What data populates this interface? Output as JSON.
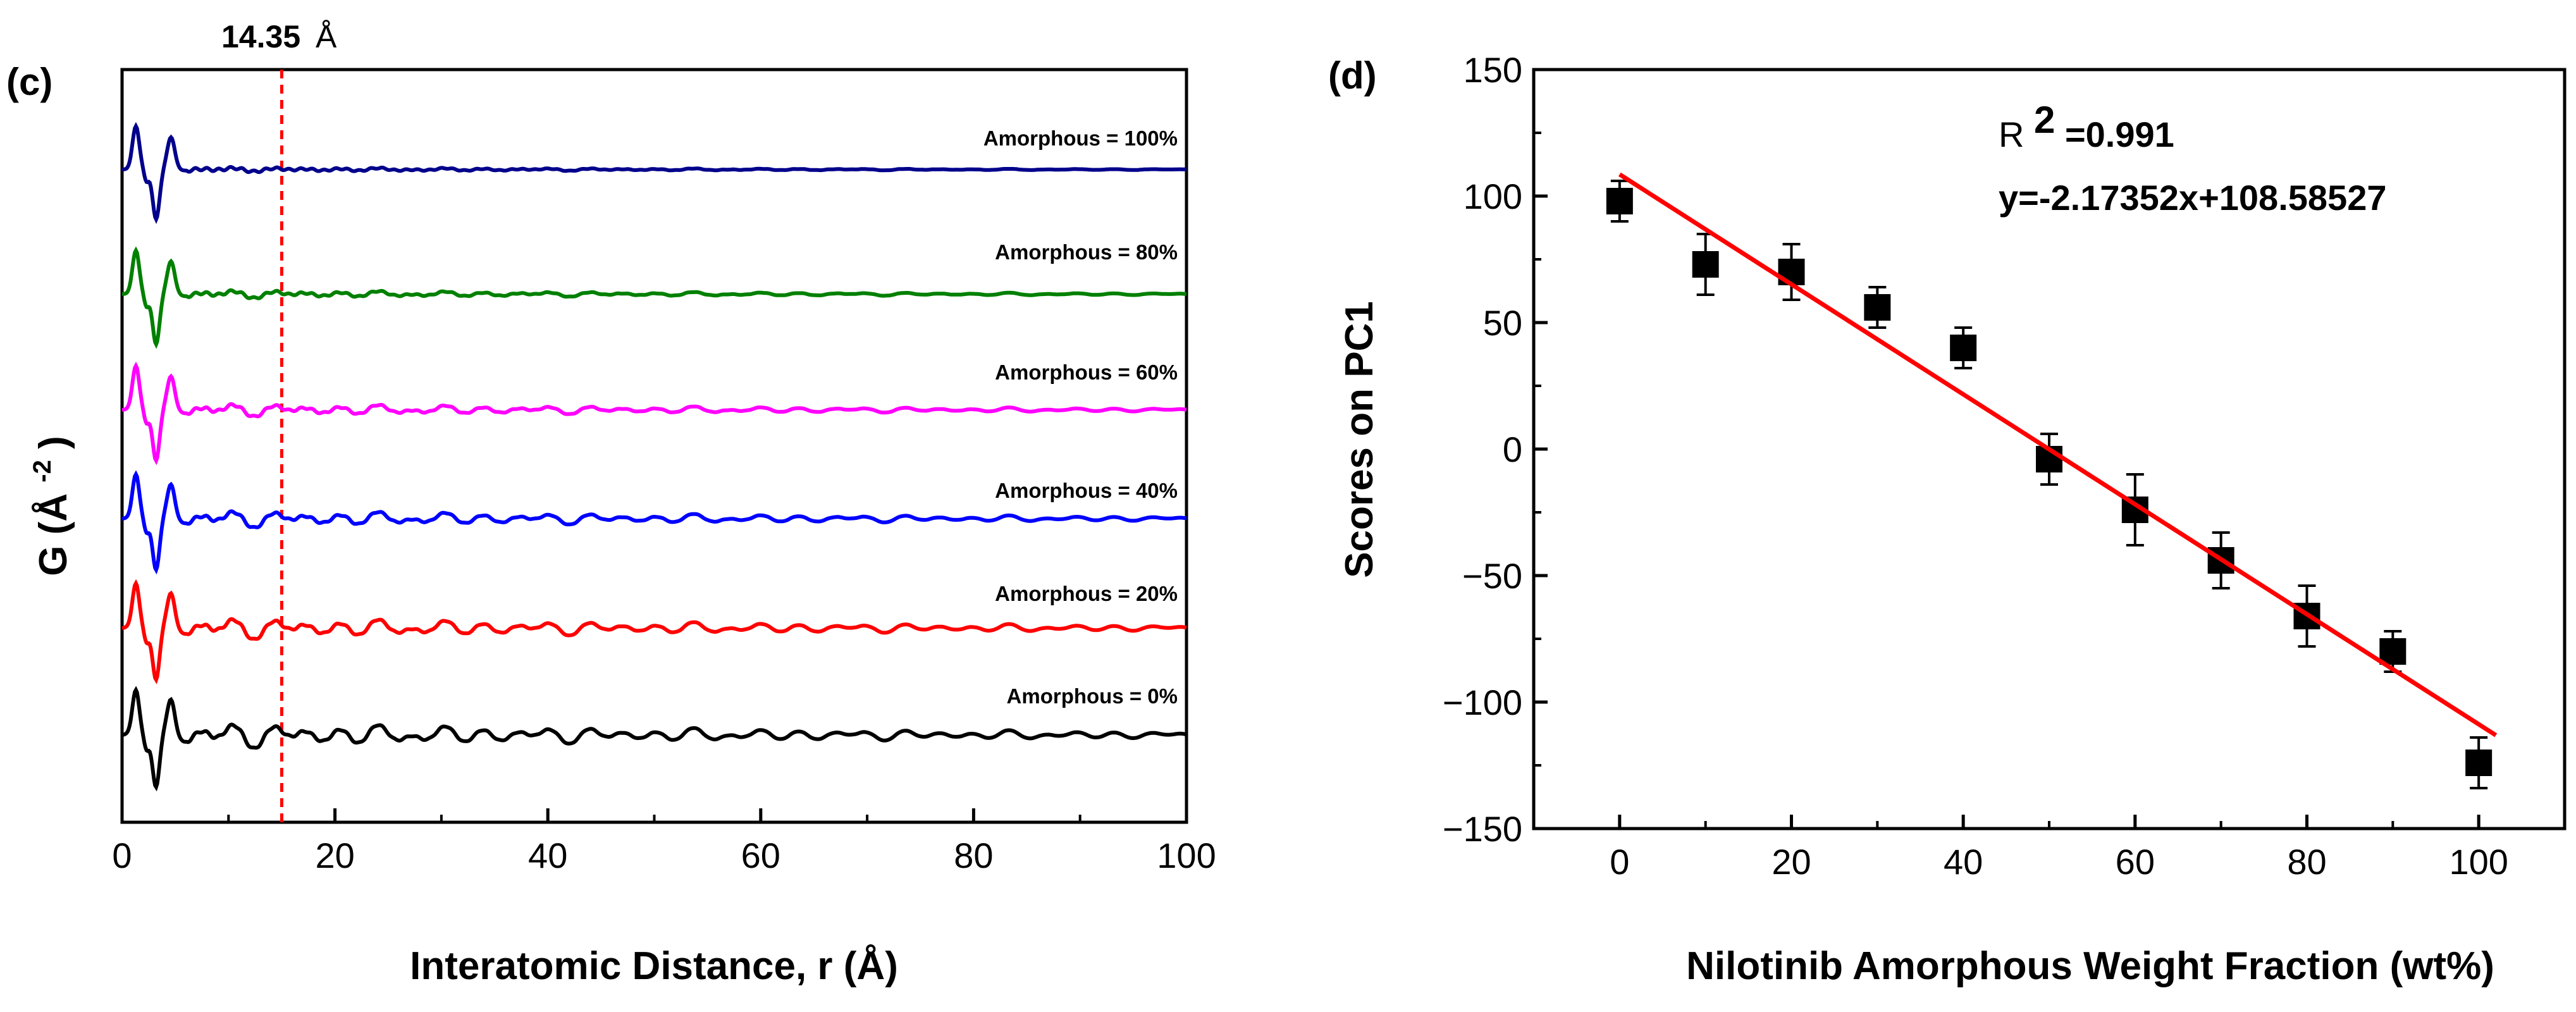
{
  "chart_data": [
    {
      "type": "line",
      "panel_label": "(c)",
      "xlabel": "Interatomic Distance, r (Å)",
      "ylabel_main": "G (Å",
      "ylabel_sup": "-2",
      "ylabel_close": ")",
      "xlim": [
        0,
        100
      ],
      "xticks": [
        0,
        20,
        40,
        60,
        80,
        100
      ],
      "ytick_labels": false,
      "annotation": {
        "label_num": "14.35",
        "label_unit": "Å",
        "x": 15.0,
        "color": "#ff0000"
      },
      "series": [
        {
          "name": "Amorphous = 100%",
          "color": "#00008b",
          "strength": 0.15
        },
        {
          "name": "Amorphous = 80%",
          "color": "#008000",
          "strength": 0.3
        },
        {
          "name": "Amorphous = 60%",
          "color": "#ff00ff",
          "strength": 0.5
        },
        {
          "name": "Amorphous = 40%",
          "color": "#0000ff",
          "strength": 0.68
        },
        {
          "name": "Amorphous = 20%",
          "color": "#ff0000",
          "strength": 0.85
        },
        {
          "name": "Amorphous = 0%",
          "color": "#000000",
          "strength": 1.0
        }
      ]
    },
    {
      "type": "scatter",
      "panel_label": "(d)",
      "xlabel": "Nilotinib Amorphous Weight Fraction (wt%)",
      "ylabel": "Scores on PC1",
      "xlim": [
        -10,
        110
      ],
      "ylim": [
        -150,
        150
      ],
      "xticks": [
        0,
        20,
        40,
        60,
        80,
        100
      ],
      "yticks": [
        -150,
        -100,
        -50,
        0,
        50,
        100,
        150
      ],
      "x": [
        0,
        10,
        20,
        30,
        40,
        50,
        60,
        70,
        80,
        90,
        100
      ],
      "y": [
        98,
        73,
        70,
        56,
        40,
        -4,
        -24,
        -44,
        -66,
        -80,
        -124
      ],
      "y_err": [
        8,
        12,
        11,
        8,
        8,
        10,
        14,
        11,
        12,
        8,
        10
      ],
      "fit": {
        "slope": -2.17352,
        "intercept": 108.58527,
        "x_range": [
          0,
          102
        ],
        "color": "#ff0000"
      },
      "annotation_r2_main": "R",
      "annotation_r2_sup": "2",
      "annotation_r2_value": "=0.991",
      "annotation_eq": "y=-2.17352x+108.58527"
    }
  ]
}
